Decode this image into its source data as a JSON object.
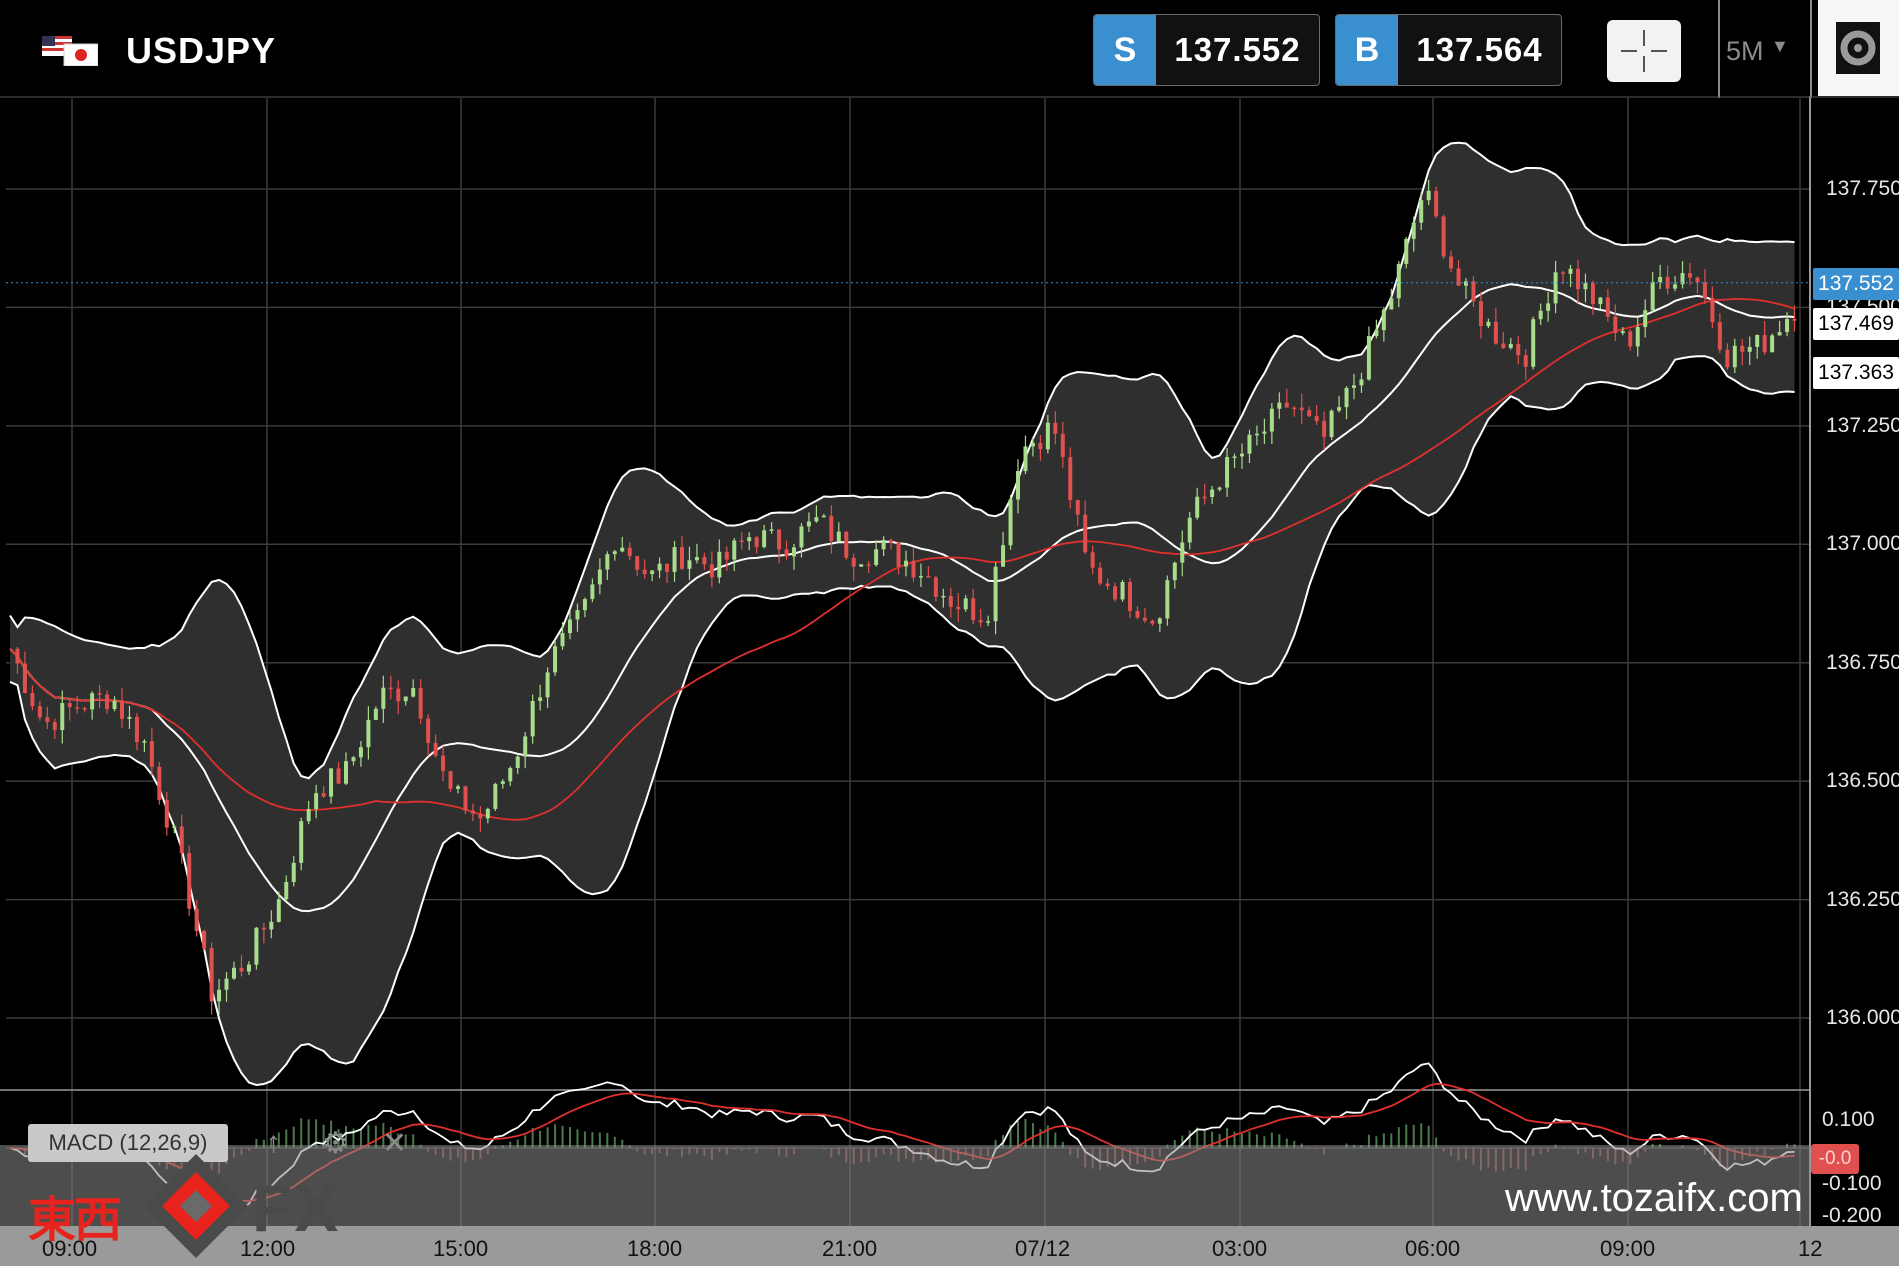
{
  "header": {
    "symbol": "USDJPY",
    "sell": {
      "label": "S",
      "price": "137.552"
    },
    "buy": {
      "label": "B",
      "price": "137.564"
    },
    "timeframe": "5M",
    "timeframe_icon": "caret-down-icon",
    "crosshair_icon": "crosshair-icon",
    "settings_icon": "gear-icon"
  },
  "colors": {
    "accent": "#3a8fd0",
    "up_candle": "#a6dc8a",
    "down_candle": "#e0504e",
    "bollinger": "#ffffff",
    "ma": "#e0302c",
    "band_fill": "#2f2f2f"
  },
  "price_axis": {
    "ticks": [
      "137.750",
      "137.500",
      "137.250",
      "137.000",
      "136.750",
      "136.500",
      "136.250",
      "136.000"
    ],
    "tags": {
      "bid": "137.552",
      "upper": "137.469",
      "lower": "137.363"
    }
  },
  "macd": {
    "label": "MACD (12,26,9)",
    "ticks": [
      "0.100",
      "-0.100",
      "-0.200"
    ],
    "current": "-0.0",
    "icons": [
      "arrow-up-icon",
      "gear-icon",
      "close-icon"
    ]
  },
  "time_axis": [
    "09:00",
    "12:00",
    "15:00",
    "18:00",
    "21:00",
    "07/12",
    "03:00",
    "06:00",
    "09:00",
    "12"
  ],
  "watermark": {
    "cjk": "東西",
    "fx": "FX",
    "site": "www.tozaifx.com"
  },
  "chart_data": {
    "type": "candlestick",
    "title": "",
    "ylim": [
      135.86,
      137.95
    ],
    "x_ticks": [
      "09:00",
      "12:00",
      "15:00",
      "18:00",
      "21:00",
      "07/12",
      "03:00",
      "06:00",
      "09:00",
      "12"
    ],
    "close_path": [
      [
        "09:00",
        136.78
      ],
      [
        "09:40",
        136.62
      ],
      [
        "10:20",
        136.66
      ],
      [
        "11:00",
        136.68
      ],
      [
        "11:40",
        136.58
      ],
      [
        "12:00",
        136.35
      ],
      [
        "12:30",
        136.05
      ],
      [
        "13:00",
        136.12
      ],
      [
        "13:30",
        136.25
      ],
      [
        "14:00",
        136.48
      ],
      [
        "14:30",
        136.52
      ],
      [
        "15:00",
        136.68
      ],
      [
        "15:30",
        136.7
      ],
      [
        "16:00",
        136.48
      ],
      [
        "16:30",
        136.42
      ],
      [
        "17:00",
        136.55
      ],
      [
        "17:30",
        136.75
      ],
      [
        "18:00",
        136.85
      ],
      [
        "18:30",
        137.02
      ],
      [
        "19:00",
        136.93
      ],
      [
        "19:30",
        136.98
      ],
      [
        "20:00",
        136.95
      ],
      [
        "20:30",
        137.02
      ],
      [
        "21:00",
        137.0
      ],
      [
        "21:30",
        137.05
      ],
      [
        "22:00",
        136.98
      ],
      [
        "22:30",
        136.99
      ],
      [
        "23:00",
        136.95
      ],
      [
        "23:30",
        136.88
      ],
      [
        "00:00",
        136.85
      ],
      [
        "00:30",
        137.2
      ],
      [
        "01:00",
        137.25
      ],
      [
        "01:30",
        136.95
      ],
      [
        "02:00",
        136.9
      ],
      [
        "02:30",
        136.84
      ],
      [
        "03:00",
        137.05
      ],
      [
        "03:30",
        137.15
      ],
      [
        "04:00",
        137.22
      ],
      [
        "04:30",
        137.3
      ],
      [
        "05:00",
        137.22
      ],
      [
        "05:30",
        137.35
      ],
      [
        "06:00",
        137.52
      ],
      [
        "06:20",
        137.75
      ],
      [
        "06:40",
        137.55
      ],
      [
        "07:00",
        137.45
      ],
      [
        "07:30",
        137.4
      ],
      [
        "08:00",
        137.6
      ],
      [
        "08:30",
        137.52
      ],
      [
        "09:00",
        137.42
      ],
      [
        "09:30",
        137.56
      ],
      [
        "10:00",
        137.58
      ],
      [
        "10:30",
        137.4
      ],
      [
        "11:00",
        137.42
      ],
      [
        "11:30",
        137.5
      ]
    ],
    "bollinger": {
      "upper_last": 137.552,
      "middle_last": 137.469,
      "lower_last": 137.363
    },
    "macd": {
      "params": [
        12,
        26,
        9
      ],
      "ylim": [
        -0.22,
        0.12
      ]
    }
  }
}
